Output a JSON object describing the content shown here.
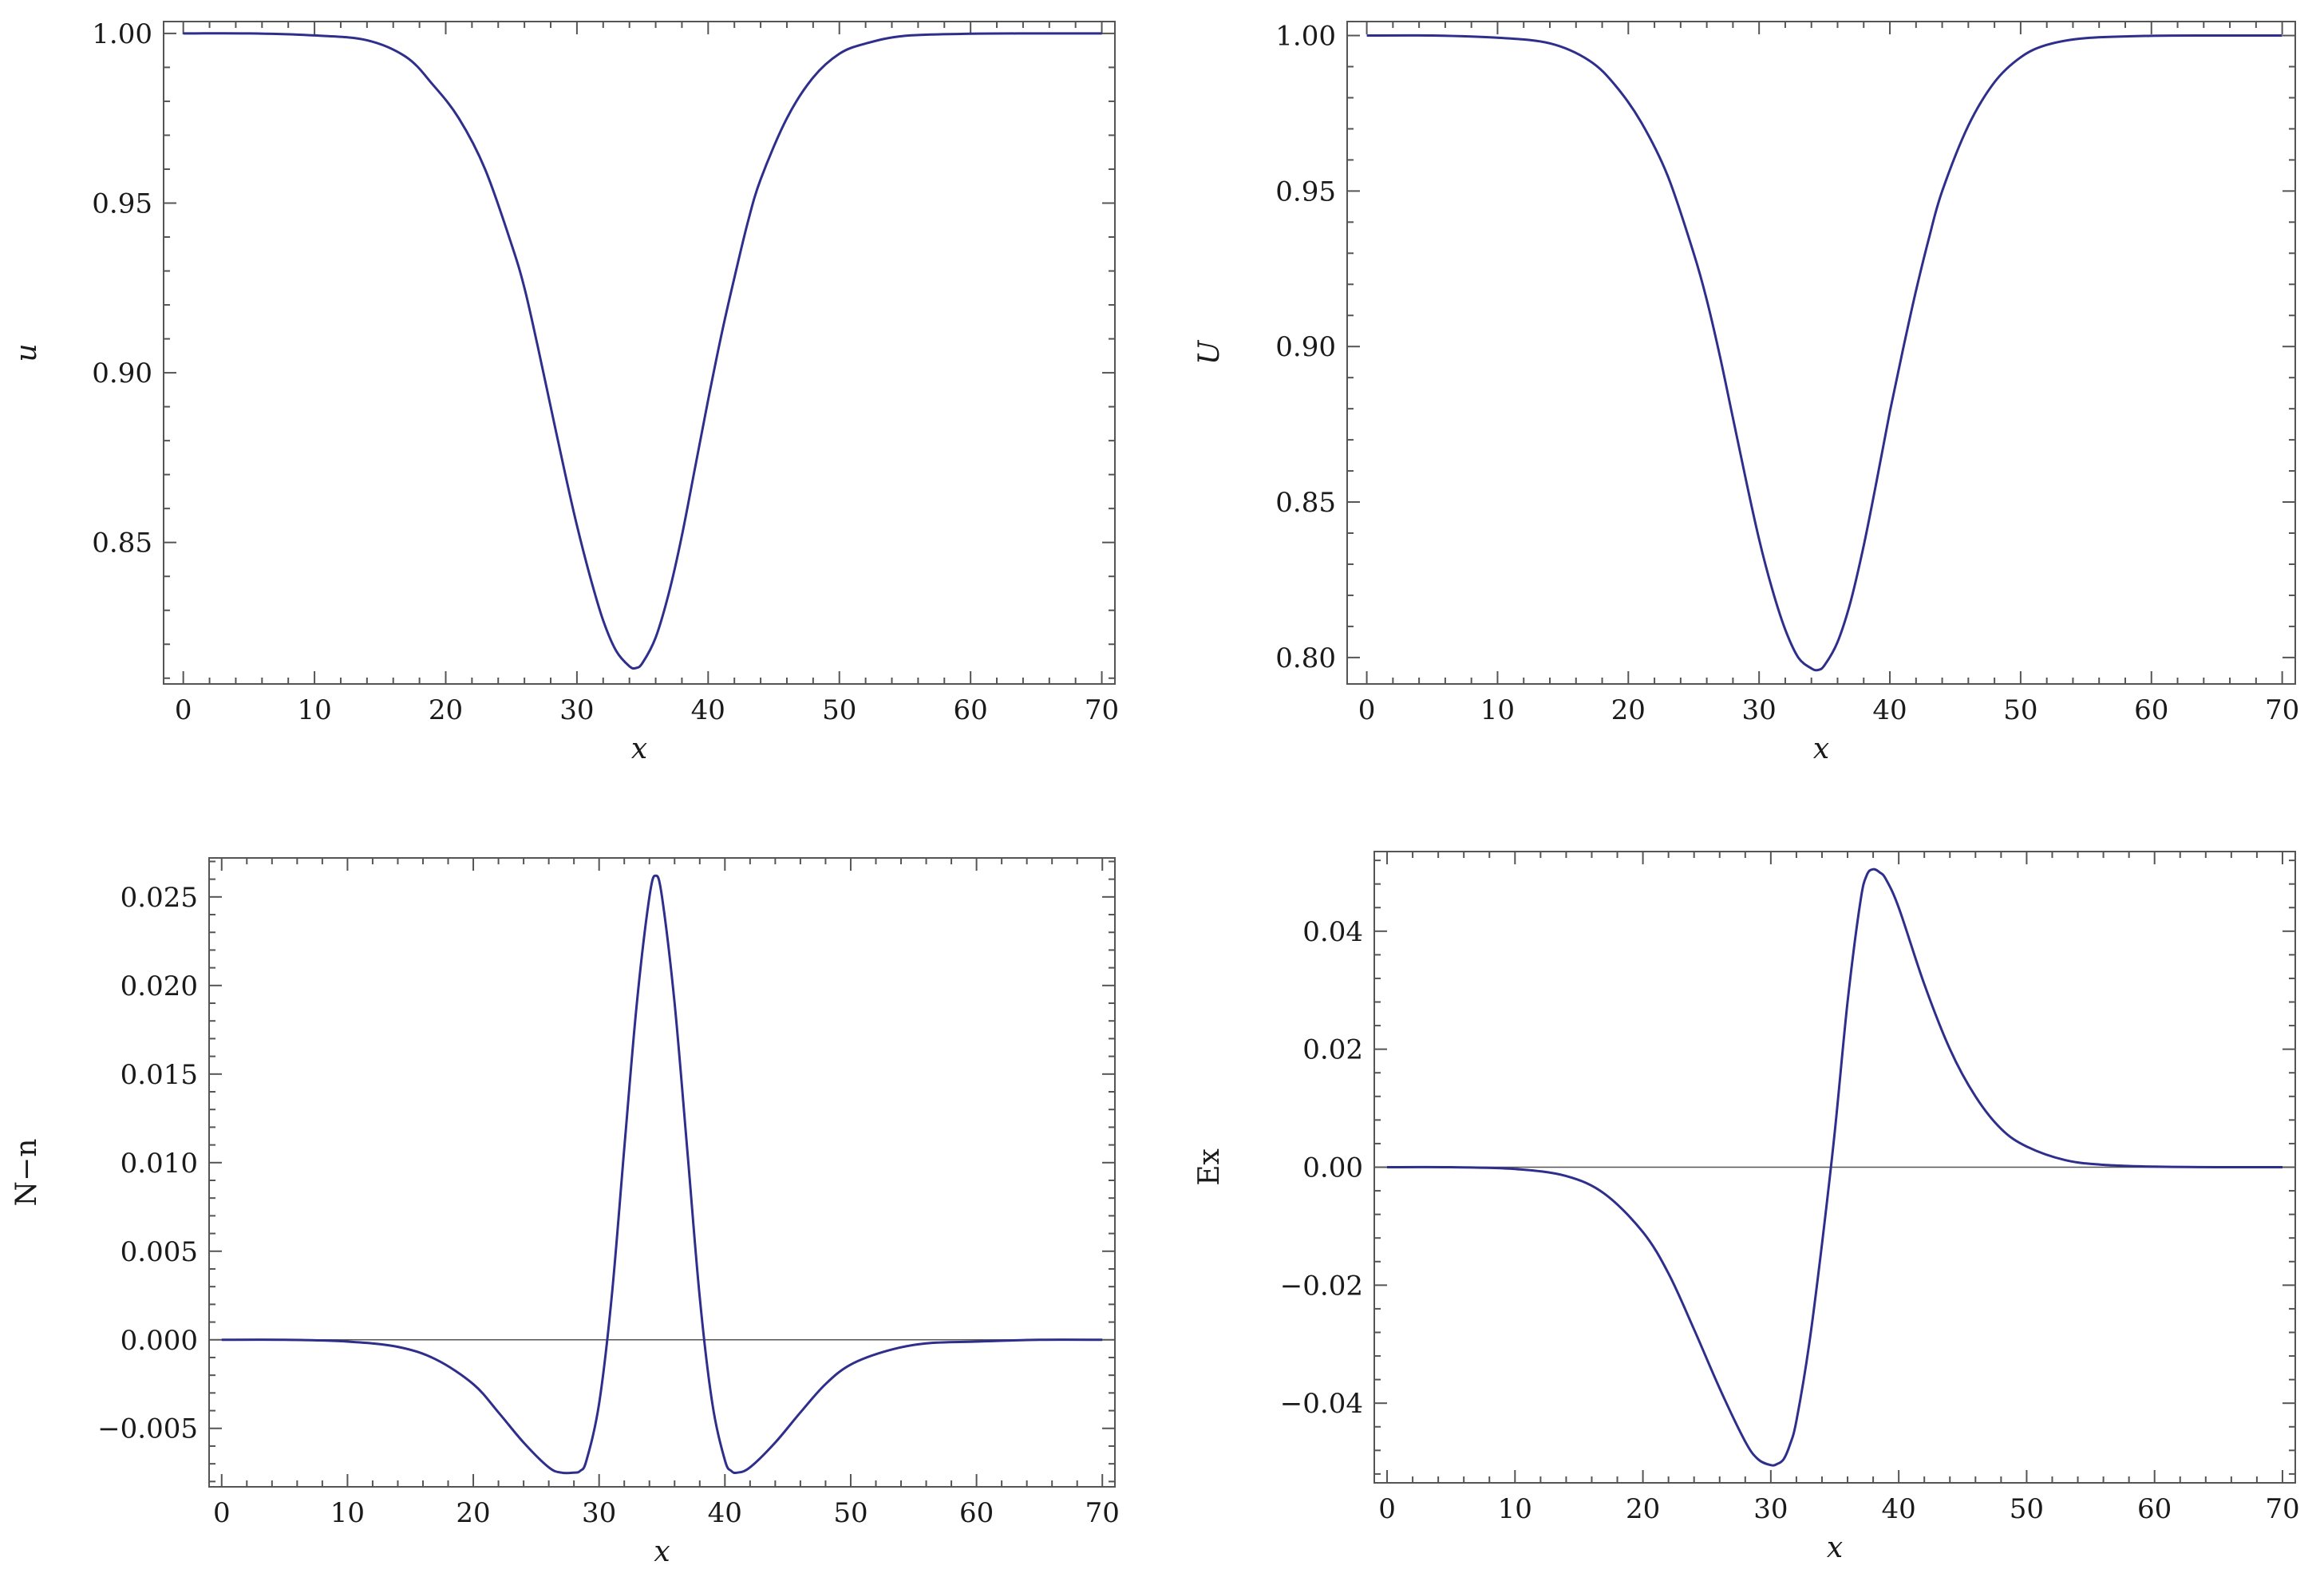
{
  "chart_data": [
    {
      "type": "line",
      "title": "",
      "xlabel": "x",
      "ylabel": "u",
      "xlim": [
        -1.5,
        71
      ],
      "ylim": [
        0.8083,
        1.0035
      ],
      "xticks": [
        0,
        10,
        20,
        30,
        40,
        50,
        60,
        70
      ],
      "xtick_labels": [
        "0",
        "10",
        "20",
        "30",
        "40",
        "50",
        "60",
        "70"
      ],
      "yticks": [
        0.85,
        0.9,
        0.95,
        1.0
      ],
      "ytick_labels": [
        "0.85",
        "0.90",
        "0.95",
        "1.00"
      ],
      "zero_line": false,
      "grid": false,
      "series": [
        {
          "color": "#2e2e8c",
          "x": [
            0,
            5,
            10,
            14,
            17,
            19,
            21,
            23,
            25,
            26,
            27,
            28,
            29,
            30,
            31,
            32,
            33,
            34,
            34.5,
            35,
            36,
            37,
            38,
            39,
            40,
            41,
            42,
            43,
            44,
            46,
            48,
            50,
            52,
            55,
            60,
            65,
            70
          ],
          "y": [
            1.0,
            1.0,
            0.9994,
            0.998,
            0.993,
            0.985,
            0.975,
            0.96,
            0.938,
            0.925,
            0.908,
            0.89,
            0.872,
            0.855,
            0.84,
            0.827,
            0.818,
            0.8135,
            0.813,
            0.8145,
            0.822,
            0.835,
            0.852,
            0.872,
            0.892,
            0.911,
            0.928,
            0.944,
            0.957,
            0.975,
            0.987,
            0.994,
            0.997,
            0.9993,
            0.9999,
            1.0,
            1.0
          ]
        }
      ]
    },
    {
      "type": "line",
      "title": "",
      "xlabel": "x",
      "ylabel": "U",
      "xlim": [
        -1.5,
        71
      ],
      "ylim": [
        0.7915,
        1.0045
      ],
      "xticks": [
        0,
        10,
        20,
        30,
        40,
        50,
        60,
        70
      ],
      "xtick_labels": [
        "0",
        "10",
        "20",
        "30",
        "40",
        "50",
        "60",
        "70"
      ],
      "yticks": [
        0.8,
        0.85,
        0.9,
        0.95,
        1.0
      ],
      "ytick_labels": [
        "0.80",
        "0.85",
        "0.90",
        "0.95",
        "1.00"
      ],
      "zero_line": false,
      "grid": false,
      "series": [
        {
          "color": "#2e2e8c",
          "x": [
            0,
            5,
            10,
            14,
            17,
            19,
            21,
            23,
            25,
            26,
            27,
            28,
            29,
            30,
            31,
            32,
            33,
            34,
            34.5,
            35,
            36,
            37,
            38,
            39,
            40,
            41,
            42,
            43,
            44,
            46,
            48,
            50,
            52,
            55,
            60,
            65,
            70
          ],
          "y": [
            1.0,
            1.0,
            0.9993,
            0.9975,
            0.992,
            0.984,
            0.972,
            0.955,
            0.93,
            0.915,
            0.897,
            0.877,
            0.857,
            0.838,
            0.822,
            0.809,
            0.8,
            0.7965,
            0.796,
            0.7975,
            0.805,
            0.818,
            0.836,
            0.857,
            0.879,
            0.899,
            0.918,
            0.935,
            0.95,
            0.971,
            0.985,
            0.993,
            0.997,
            0.9992,
            0.9999,
            1.0,
            1.0
          ]
        }
      ]
    },
    {
      "type": "line",
      "title": "",
      "xlabel": "x",
      "ylabel": "N−n",
      "xlim": [
        -1,
        71
      ],
      "ylim": [
        -0.0083,
        0.0272
      ],
      "xticks": [
        0,
        10,
        20,
        30,
        40,
        50,
        60,
        70
      ],
      "xtick_labels": [
        "0",
        "10",
        "20",
        "30",
        "40",
        "50",
        "60",
        "70"
      ],
      "yticks": [
        -0.005,
        0.0,
        0.005,
        0.01,
        0.015,
        0.02,
        0.025
      ],
      "ytick_labels": [
        "−0.005",
        "0.000",
        "0.005",
        "0.010",
        "0.015",
        "0.020",
        "0.025"
      ],
      "zero_line": true,
      "grid": false,
      "series": [
        {
          "color": "#2e2e8c",
          "x": [
            0,
            5,
            10,
            14,
            17,
            20,
            22,
            24,
            26,
            27,
            28,
            28.5,
            29,
            30,
            31,
            32,
            33,
            34,
            34.5,
            35,
            36,
            37,
            38,
            39,
            40,
            40.5,
            41,
            42,
            44,
            46,
            48,
            50,
            53,
            56,
            60,
            65,
            70
          ],
          "y": [
            0.0,
            0.0,
            -0.0001,
            -0.0004,
            -0.0011,
            -0.0025,
            -0.0041,
            -0.0058,
            -0.0072,
            -0.0075,
            -0.0075,
            -0.0074,
            -0.0068,
            -0.0036,
            0.0024,
            0.0108,
            0.019,
            0.025,
            0.0262,
            0.025,
            0.019,
            0.0108,
            0.0024,
            -0.0036,
            -0.0068,
            -0.0074,
            -0.0075,
            -0.0072,
            -0.0058,
            -0.0041,
            -0.0025,
            -0.0014,
            -0.0006,
            -0.0002,
            -0.0001,
            0.0,
            0.0
          ]
        }
      ]
    },
    {
      "type": "line",
      "title": "",
      "xlabel": "x",
      "ylabel": "Ex",
      "xlim": [
        -1,
        71
      ],
      "ylim": [
        -0.0535,
        0.0535
      ],
      "xticks": [
        0,
        10,
        20,
        30,
        40,
        50,
        60,
        70
      ],
      "xtick_labels": [
        "0",
        "10",
        "20",
        "30",
        "40",
        "50",
        "60",
        "70"
      ],
      "yticks": [
        -0.04,
        -0.02,
        0.0,
        0.02,
        0.04
      ],
      "ytick_labels": [
        "−0.04",
        "−0.02",
        "0.00",
        "0.02",
        "0.04"
      ],
      "zero_line": true,
      "grid": false,
      "series": [
        {
          "color": "#2e2e8c",
          "x": [
            0,
            5,
            10,
            14,
            17,
            20,
            22,
            24,
            26,
            28,
            29,
            30,
            30.5,
            31,
            31.5,
            32,
            33,
            34,
            35,
            36,
            37,
            37.5,
            38,
            38.5,
            39,
            40,
            42,
            44,
            46,
            48,
            50,
            53,
            56,
            60,
            65,
            70
          ],
          "y": [
            0.0,
            0.0,
            -0.0003,
            -0.0015,
            -0.0045,
            -0.011,
            -0.018,
            -0.0275,
            -0.0375,
            -0.0465,
            -0.0495,
            -0.0505,
            -0.0503,
            -0.0495,
            -0.047,
            -0.043,
            -0.03,
            -0.013,
            0.006,
            0.028,
            0.045,
            0.0495,
            0.0505,
            0.05,
            0.0488,
            0.044,
            0.031,
            0.02,
            0.012,
            0.0065,
            0.0035,
            0.0012,
            0.0004,
            0.0001,
            0.0,
            0.0
          ]
        }
      ]
    }
  ]
}
